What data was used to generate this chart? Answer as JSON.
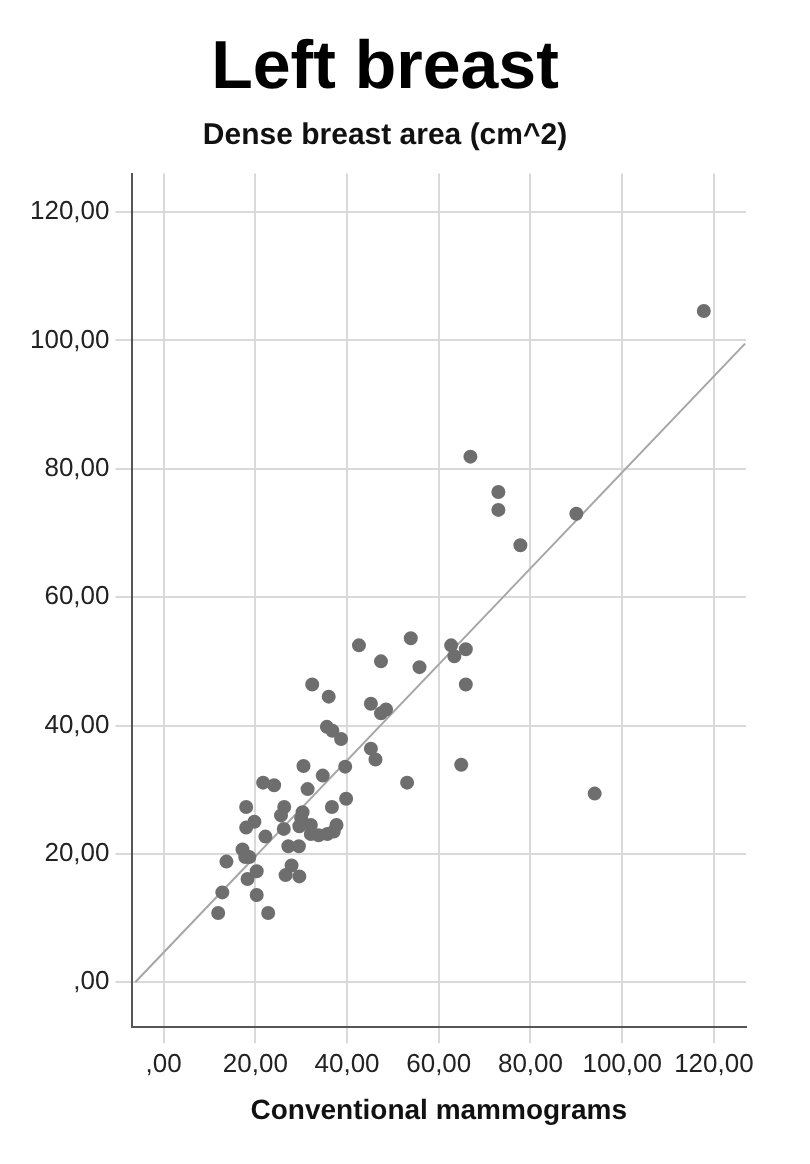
{
  "chart_data": {
    "type": "scatter",
    "title": "Left breast",
    "subtitle": "Dense breast area (cm^2)",
    "xlabel": "Conventional mammograms",
    "xlim": [
      -7,
      127
    ],
    "ylim": [
      -7,
      126
    ],
    "xticks": [
      {
        "value": 0,
        "label": ",00"
      },
      {
        "value": 20,
        "label": "20,00"
      },
      {
        "value": 40,
        "label": "40,00"
      },
      {
        "value": 60,
        "label": "60,00"
      },
      {
        "value": 80,
        "label": "80,00"
      },
      {
        "value": 100,
        "label": "100,00"
      },
      {
        "value": 120,
        "label": "120,00"
      }
    ],
    "yticks": [
      {
        "value": 0,
        "label": ",00"
      },
      {
        "value": 20,
        "label": "20,00"
      },
      {
        "value": 40,
        "label": "40,00"
      },
      {
        "value": 60,
        "label": "60,00"
      },
      {
        "value": 80,
        "label": "80,00"
      },
      {
        "value": 100,
        "label": "100,00"
      },
      {
        "value": 120,
        "label": "120,00"
      }
    ],
    "grid": true,
    "marker": "circle",
    "series": [
      {
        "color": "#6e6e6e",
        "x": [
          117.8,
          94.0,
          90.0,
          77.8,
          73.0,
          73.0,
          66.9,
          65.9,
          65.9,
          64.9,
          63.4,
          62.7,
          55.8,
          53.9,
          53.1,
          48.5,
          47.4,
          47.4,
          46.2,
          45.2,
          45.2,
          42.6,
          39.8,
          39.6,
          38.7,
          36.8,
          36.7,
          36.0,
          35.6,
          37.7,
          37.1,
          35.7,
          34.7,
          33.8,
          32.4,
          32.1,
          32.1,
          31.4,
          30.5,
          30.3,
          30.0,
          29.6,
          29.5,
          29.6,
          27.9,
          27.2,
          26.6,
          26.3,
          26.2,
          25.6,
          24.1,
          22.8,
          22.2,
          21.7,
          20.3,
          20.3,
          19.8,
          18.7,
          18.3,
          18.0,
          18.0,
          17.8,
          17.2,
          13.7,
          12.8,
          11.9
        ],
        "values": [
          104.6,
          29.4,
          73.0,
          68.1,
          76.4,
          73.6,
          81.9,
          51.9,
          46.4,
          33.9,
          50.8,
          52.5,
          49.1,
          53.6,
          31.1,
          42.5,
          41.9,
          50.0,
          34.7,
          36.4,
          43.4,
          52.5,
          28.6,
          33.6,
          37.9,
          39.2,
          27.3,
          44.5,
          39.8,
          24.5,
          23.5,
          23.1,
          32.2,
          22.9,
          46.4,
          24.5,
          23.1,
          30.1,
          33.7,
          26.5,
          25.6,
          24.3,
          21.2,
          16.5,
          18.2,
          21.2,
          16.7,
          27.3,
          23.9,
          26.0,
          30.7,
          10.8,
          22.7,
          31.1,
          17.3,
          13.6,
          25.0,
          19.5,
          16.1,
          27.3,
          24.1,
          19.5,
          20.7,
          18.8,
          14.0,
          10.8
        ]
      },
      {
        "type": "line",
        "color": "#a6a6a6",
        "marker": "none",
        "x": [
          -6.2,
          126.8
        ],
        "values": [
          0,
          99.5
        ]
      }
    ]
  }
}
